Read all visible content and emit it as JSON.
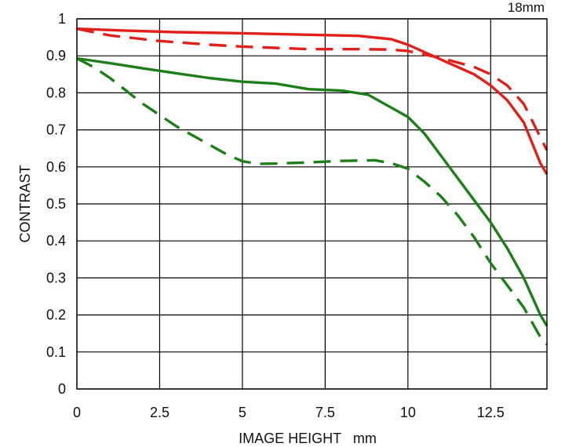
{
  "chart_data": {
    "type": "line",
    "title": "",
    "corner_label": "18mm",
    "xlabel": "IMAGE HEIGHT   mm",
    "ylabel": "CONTRAST",
    "xlim": [
      0,
      14.2
    ],
    "ylim": [
      0,
      1
    ],
    "grid": true,
    "x_ticks": [
      "0",
      "2.5",
      "5",
      "7.5",
      "10",
      "12.5"
    ],
    "x_tick_values": [
      0,
      2.5,
      5,
      7.5,
      10,
      12.5
    ],
    "y_ticks": [
      "0",
      "0.1",
      "0.2",
      "0.3",
      "0.4",
      "0.5",
      "0.6",
      "0.7",
      "0.8",
      "0.9",
      "1"
    ],
    "y_tick_values": [
      0,
      0.1,
      0.2,
      0.3,
      0.4,
      0.5,
      0.6,
      0.7,
      0.8,
      0.9,
      1
    ],
    "series": [
      {
        "color": "#e0201b",
        "style": "solid",
        "points": [
          [
            0,
            0.973
          ],
          [
            1.5,
            0.968
          ],
          [
            3,
            0.964
          ],
          [
            5,
            0.961
          ],
          [
            7,
            0.957
          ],
          [
            8.5,
            0.954
          ],
          [
            9.5,
            0.945
          ],
          [
            10,
            0.93
          ],
          [
            11,
            0.89
          ],
          [
            12,
            0.85
          ],
          [
            12.5,
            0.82
          ],
          [
            13,
            0.78
          ],
          [
            13.5,
            0.72
          ],
          [
            14,
            0.61
          ],
          [
            14.2,
            0.58
          ]
        ]
      },
      {
        "color": "#e0201b",
        "style": "dashed",
        "points": [
          [
            0,
            0.973
          ],
          [
            1,
            0.955
          ],
          [
            2.5,
            0.94
          ],
          [
            4,
            0.93
          ],
          [
            5,
            0.925
          ],
          [
            7,
            0.918
          ],
          [
            8.5,
            0.918
          ],
          [
            9.5,
            0.917
          ],
          [
            10,
            0.913
          ],
          [
            11,
            0.894
          ],
          [
            12,
            0.87
          ],
          [
            12.5,
            0.85
          ],
          [
            13,
            0.82
          ],
          [
            13.5,
            0.77
          ],
          [
            14,
            0.68
          ],
          [
            14.2,
            0.645
          ]
        ]
      },
      {
        "color": "#1e7e1a",
        "style": "solid",
        "points": [
          [
            0,
            0.893
          ],
          [
            1,
            0.88
          ],
          [
            2,
            0.866
          ],
          [
            3,
            0.853
          ],
          [
            4,
            0.84
          ],
          [
            5,
            0.83
          ],
          [
            6,
            0.825
          ],
          [
            7,
            0.81
          ],
          [
            8,
            0.806
          ],
          [
            8.8,
            0.795
          ],
          [
            9.5,
            0.76
          ],
          [
            10,
            0.735
          ],
          [
            10.5,
            0.69
          ],
          [
            11,
            0.63
          ],
          [
            11.5,
            0.57
          ],
          [
            12,
            0.51
          ],
          [
            12.5,
            0.45
          ],
          [
            13,
            0.38
          ],
          [
            13.5,
            0.3
          ],
          [
            14,
            0.2
          ],
          [
            14.2,
            0.17
          ]
        ]
      },
      {
        "color": "#1e7e1a",
        "style": "dashed",
        "points": [
          [
            0,
            0.893
          ],
          [
            0.5,
            0.87
          ],
          [
            1,
            0.84
          ],
          [
            2,
            0.77
          ],
          [
            3,
            0.71
          ],
          [
            4,
            0.66
          ],
          [
            4.5,
            0.635
          ],
          [
            5,
            0.615
          ],
          [
            5.5,
            0.608
          ],
          [
            6,
            0.609
          ],
          [
            7,
            0.612
          ],
          [
            8,
            0.616
          ],
          [
            9,
            0.618
          ],
          [
            9.5,
            0.61
          ],
          [
            10,
            0.595
          ],
          [
            10.5,
            0.56
          ],
          [
            11,
            0.52
          ],
          [
            11.5,
            0.47
          ],
          [
            12,
            0.41
          ],
          [
            12.5,
            0.34
          ],
          [
            13,
            0.28
          ],
          [
            13.5,
            0.22
          ],
          [
            14,
            0.14
          ],
          [
            14.2,
            0.12
          ]
        ]
      }
    ]
  }
}
